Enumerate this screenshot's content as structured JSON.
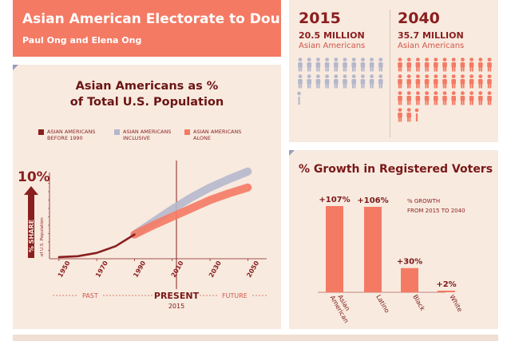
{
  "header": {
    "title": "Asian American Electorate to Double",
    "authors": "Paul Ong and Elena Ong"
  },
  "population": {
    "left": {
      "year": "2015",
      "value": "20.5 MILLION",
      "label": "Asian Americans",
      "millions": 20.5
    },
    "right": {
      "year": "2040",
      "value": "35.7 MILLION",
      "label": "Asian Americans",
      "millions": 35.7
    },
    "icon_colors": {
      "left": "#b5b8cc",
      "right": "#f47a64"
    }
  },
  "share_chart": {
    "title_line1": "Asian Americans as %",
    "title_line2": "of Total U.S. Population",
    "y_top_label": "10%",
    "y_arrow_label": "% SHARE",
    "y_arrow_sublabel": "of U.S. Population",
    "legend": [
      {
        "line1": "ASIAN AMERICANS",
        "line2": "BEFORE 1990",
        "color": "#8a1f1f"
      },
      {
        "line1": "ASIAN AMERICANS",
        "line2": "INCLUSIVE",
        "color": "#b5b8cc"
      },
      {
        "line1": "ASIAN AMERICANS",
        "line2": "ALONE",
        "color": "#f47a64"
      }
    ],
    "x_ticks": [
      "1950",
      "1970",
      "1990",
      "2010",
      "2030",
      "2050"
    ],
    "past_label": "PAST",
    "present_label": "PRESENT",
    "present_year": "2015",
    "future_label": "FUTURE"
  },
  "chart_data": {
    "type": "line",
    "x_range": [
      1945,
      2060
    ],
    "y_range": [
      0,
      10
    ],
    "series": [
      {
        "name": "ASIAN AMERICANS BEFORE 1990",
        "color": "#8a1f1f",
        "points": [
          [
            1950,
            0.2
          ],
          [
            1960,
            0.3
          ],
          [
            1970,
            0.7
          ],
          [
            1980,
            1.5
          ],
          [
            1990,
            2.9
          ]
        ]
      },
      {
        "name": "ASIAN AMERICANS INCLUSIVE",
        "color": "#b5b8cc",
        "points": [
          [
            1990,
            2.9
          ],
          [
            2000,
            4.4
          ],
          [
            2010,
            5.9
          ],
          [
            2020,
            7.3
          ],
          [
            2030,
            8.5
          ],
          [
            2040,
            9.5
          ],
          [
            2050,
            10.4
          ]
        ]
      },
      {
        "name": "ASIAN AMERICANS ALONE",
        "color": "#f47a64",
        "points": [
          [
            1990,
            2.9
          ],
          [
            2000,
            4.0
          ],
          [
            2010,
            5.0
          ],
          [
            2020,
            6.0
          ],
          [
            2030,
            7.0
          ],
          [
            2040,
            7.8
          ],
          [
            2050,
            8.5
          ]
        ]
      }
    ]
  },
  "growth": {
    "title": "% Growth in Registered Voters",
    "note_line1": "% GROWTH",
    "note_line2": "FROM 2015 TO 2040",
    "bar_color": "#f47a64"
  },
  "growth_chart_data": {
    "type": "bar",
    "categories": [
      "Asian American",
      "Latino",
      "Black",
      "White"
    ],
    "values": [
      107,
      106,
      30,
      2
    ],
    "value_labels": [
      "+107%",
      "+106%",
      "+30%",
      "+2%"
    ]
  }
}
